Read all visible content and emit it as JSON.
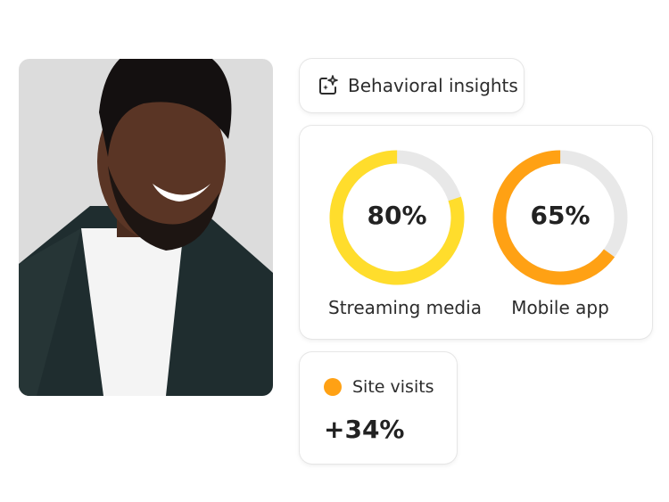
{
  "badge": {
    "label": "Behavioral insights",
    "icon": "sparkle-image-icon"
  },
  "metrics": [
    {
      "label": "Streaming media",
      "value": "80%",
      "fraction": 0.8,
      "color": "#FFDD2C"
    },
    {
      "label": "Mobile app",
      "value": "65%",
      "fraction": 0.65,
      "color": "#FFA114"
    }
  ],
  "track_color": "#E8E8E8",
  "site_visits": {
    "label": "Site visits",
    "value": "+34%",
    "dot_color": "#FFA114"
  }
}
